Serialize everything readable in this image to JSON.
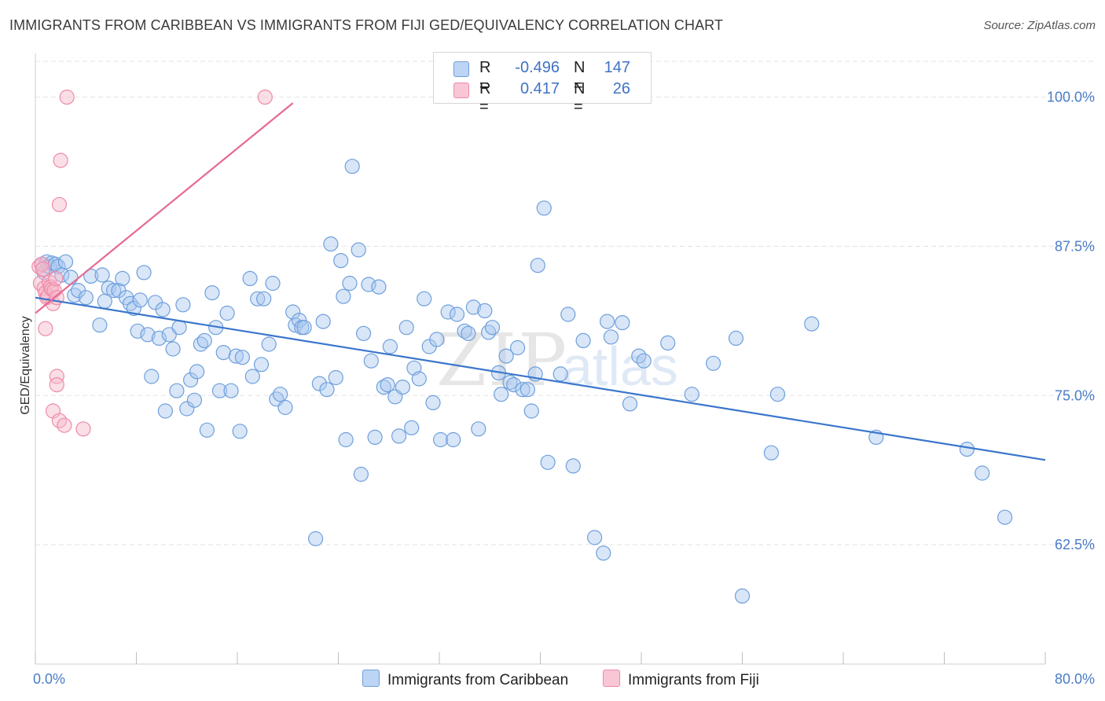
{
  "header": {
    "title": "IMMIGRANTS FROM CARIBBEAN VS IMMIGRANTS FROM FIJI GED/EQUIVALENCY CORRELATION CHART",
    "source": "Source: ZipAtlas.com"
  },
  "legend": {
    "r_label": "R =",
    "n_label": "N =",
    "caribbean_r": "-0.496",
    "caribbean_n": "147",
    "fiji_r": "0.417",
    "fiji_n": "26"
  },
  "bottom_legend": {
    "caribbean": "Immigrants from Caribbean",
    "fiji": "Immigrants from Fiji"
  },
  "watermark": {
    "zip": "ZIP",
    "atlas": "atlas"
  },
  "colors": {
    "caribbean_fill": "#a8c8f0",
    "caribbean_stroke": "#6f9fdc",
    "caribbean_line": "#3a76cc",
    "fiji_fill": "#f6b7c9",
    "fiji_stroke": "#ee8aa8",
    "fiji_line": "#e66a91",
    "tick_text": "#4a7cc7",
    "grid": "#e3e3e3"
  },
  "chart_data": {
    "type": "scatter",
    "title": "IMMIGRANTS FROM CARIBBEAN VS IMMIGRANTS FROM FIJI GED/EQUIVALENCY CORRELATION CHART",
    "xlabel": "",
    "ylabel": "GED/Equivalency",
    "xlim": [
      0,
      80
    ],
    "ylim": [
      52.5,
      103
    ],
    "x_tick_labels": [
      "0.0%",
      "80.0%"
    ],
    "y_ticks": [
      62.5,
      75.0,
      87.5,
      100.0
    ],
    "y_tick_labels": [
      "62.5%",
      "75.0%",
      "87.5%",
      "100.0%"
    ],
    "grid": true,
    "legend_position": "top-center",
    "series": [
      {
        "name": "Immigrants from Caribbean",
        "trend": {
          "x": [
            0,
            80
          ],
          "y": [
            83.2,
            69.6
          ]
        },
        "points": [
          [
            0.5,
            86.0
          ],
          [
            0.7,
            85.3
          ],
          [
            0.9,
            86.2
          ],
          [
            1.1,
            85.8
          ],
          [
            1.3,
            86.1
          ],
          [
            1.6,
            86.0
          ],
          [
            1.8,
            85.8
          ],
          [
            2.1,
            85.1
          ],
          [
            2.4,
            86.2
          ],
          [
            2.8,
            84.9
          ],
          [
            3.1,
            83.4
          ],
          [
            3.4,
            83.8
          ],
          [
            4.0,
            83.2
          ],
          [
            4.4,
            85.0
          ],
          [
            5.1,
            80.9
          ],
          [
            5.3,
            85.1
          ],
          [
            5.5,
            82.9
          ],
          [
            5.8,
            84.0
          ],
          [
            6.2,
            83.8
          ],
          [
            6.6,
            83.8
          ],
          [
            6.9,
            84.8
          ],
          [
            7.2,
            83.2
          ],
          [
            7.5,
            82.7
          ],
          [
            7.8,
            82.3
          ],
          [
            8.1,
            80.4
          ],
          [
            8.3,
            83.0
          ],
          [
            8.6,
            85.3
          ],
          [
            8.9,
            80.1
          ],
          [
            9.2,
            76.6
          ],
          [
            9.5,
            82.8
          ],
          [
            9.8,
            79.8
          ],
          [
            10.1,
            82.2
          ],
          [
            10.3,
            73.7
          ],
          [
            10.6,
            80.1
          ],
          [
            10.9,
            78.9
          ],
          [
            11.2,
            75.4
          ],
          [
            11.4,
            80.7
          ],
          [
            11.7,
            82.6
          ],
          [
            12.0,
            73.9
          ],
          [
            12.3,
            76.3
          ],
          [
            12.6,
            74.6
          ],
          [
            12.8,
            77.0
          ],
          [
            13.1,
            79.3
          ],
          [
            13.4,
            79.6
          ],
          [
            13.6,
            72.1
          ],
          [
            14.0,
            83.6
          ],
          [
            14.3,
            80.7
          ],
          [
            14.6,
            75.4
          ],
          [
            14.9,
            78.6
          ],
          [
            15.2,
            81.9
          ],
          [
            15.5,
            75.4
          ],
          [
            15.9,
            78.3
          ],
          [
            16.2,
            72.0
          ],
          [
            16.4,
            78.2
          ],
          [
            17.0,
            84.8
          ],
          [
            17.2,
            76.6
          ],
          [
            17.6,
            83.1
          ],
          [
            17.9,
            77.6
          ],
          [
            18.1,
            83.1
          ],
          [
            18.5,
            79.3
          ],
          [
            18.8,
            84.4
          ],
          [
            19.1,
            74.7
          ],
          [
            19.4,
            75.1
          ],
          [
            19.8,
            74.0
          ],
          [
            20.4,
            82.0
          ],
          [
            20.6,
            80.9
          ],
          [
            20.9,
            81.3
          ],
          [
            21.1,
            80.7
          ],
          [
            21.3,
            80.7
          ],
          [
            22.2,
            63.0
          ],
          [
            22.5,
            76.0
          ],
          [
            22.8,
            81.2
          ],
          [
            23.1,
            75.5
          ],
          [
            23.4,
            87.7
          ],
          [
            23.8,
            76.5
          ],
          [
            24.2,
            86.3
          ],
          [
            24.4,
            83.3
          ],
          [
            24.6,
            71.3
          ],
          [
            24.9,
            84.4
          ],
          [
            25.1,
            94.2
          ],
          [
            25.6,
            87.2
          ],
          [
            25.8,
            68.4
          ],
          [
            26.0,
            80.2
          ],
          [
            26.4,
            84.3
          ],
          [
            26.6,
            77.9
          ],
          [
            26.9,
            71.5
          ],
          [
            27.2,
            84.1
          ],
          [
            27.6,
            75.7
          ],
          [
            27.9,
            75.9
          ],
          [
            28.1,
            79.1
          ],
          [
            28.5,
            74.9
          ],
          [
            28.8,
            71.6
          ],
          [
            29.1,
            75.7
          ],
          [
            29.4,
            80.7
          ],
          [
            29.8,
            72.3
          ],
          [
            30.0,
            77.3
          ],
          [
            30.4,
            76.4
          ],
          [
            30.8,
            83.1
          ],
          [
            31.2,
            79.1
          ],
          [
            31.5,
            74.4
          ],
          [
            31.8,
            79.7
          ],
          [
            32.1,
            71.3
          ],
          [
            32.7,
            82.0
          ],
          [
            33.1,
            71.3
          ],
          [
            33.4,
            81.8
          ],
          [
            34.0,
            80.4
          ],
          [
            34.3,
            80.2
          ],
          [
            34.7,
            82.4
          ],
          [
            35.1,
            72.2
          ],
          [
            35.6,
            82.1
          ],
          [
            35.9,
            80.3
          ],
          [
            36.2,
            80.7
          ],
          [
            36.7,
            76.9
          ],
          [
            36.9,
            75.1
          ],
          [
            37.3,
            78.3
          ],
          [
            37.6,
            76.1
          ],
          [
            37.9,
            75.9
          ],
          [
            38.2,
            79.0
          ],
          [
            38.6,
            75.5
          ],
          [
            39.0,
            75.5
          ],
          [
            39.3,
            73.7
          ],
          [
            39.6,
            76.8
          ],
          [
            39.8,
            85.9
          ],
          [
            40.3,
            90.7
          ],
          [
            40.6,
            69.4
          ],
          [
            41.6,
            76.8
          ],
          [
            42.2,
            81.8
          ],
          [
            42.6,
            69.1
          ],
          [
            43.4,
            79.6
          ],
          [
            44.3,
            63.1
          ],
          [
            45.0,
            61.8
          ],
          [
            45.3,
            81.2
          ],
          [
            45.6,
            79.9
          ],
          [
            46.5,
            81.1
          ],
          [
            47.1,
            74.3
          ],
          [
            47.8,
            78.3
          ],
          [
            48.2,
            77.9
          ],
          [
            50.1,
            79.4
          ],
          [
            52.0,
            75.1
          ],
          [
            53.7,
            77.7
          ],
          [
            55.5,
            79.8
          ],
          [
            56.0,
            58.2
          ],
          [
            58.3,
            70.2
          ],
          [
            58.8,
            75.1
          ],
          [
            61.5,
            81.0
          ],
          [
            66.6,
            71.5
          ],
          [
            73.8,
            70.5
          ],
          [
            75.0,
            68.5
          ],
          [
            76.8,
            64.8
          ]
        ]
      },
      {
        "name": "Immigrants from Fiji",
        "trend": {
          "x": [
            0,
            20.4
          ],
          "y": [
            81.9,
            99.5
          ]
        },
        "points": [
          [
            0.3,
            85.8
          ],
          [
            0.4,
            84.4
          ],
          [
            0.5,
            86.0
          ],
          [
            0.6,
            85.6
          ],
          [
            0.7,
            84.0
          ],
          [
            0.8,
            83.6
          ],
          [
            0.9,
            83.2
          ],
          [
            1.0,
            83.3
          ],
          [
            1.1,
            84.5
          ],
          [
            1.2,
            84.1
          ],
          [
            1.3,
            83.9
          ],
          [
            1.4,
            82.7
          ],
          [
            1.5,
            83.8
          ],
          [
            1.6,
            84.8
          ],
          [
            1.7,
            83.2
          ],
          [
            0.8,
            80.6
          ],
          [
            1.7,
            76.6
          ],
          [
            1.7,
            75.9
          ],
          [
            1.4,
            73.7
          ],
          [
            1.9,
            72.9
          ],
          [
            2.3,
            72.5
          ],
          [
            3.8,
            72.2
          ],
          [
            1.9,
            91.0
          ],
          [
            2.0,
            94.7
          ],
          [
            2.5,
            100.0
          ],
          [
            18.2,
            100.0
          ]
        ]
      }
    ]
  }
}
